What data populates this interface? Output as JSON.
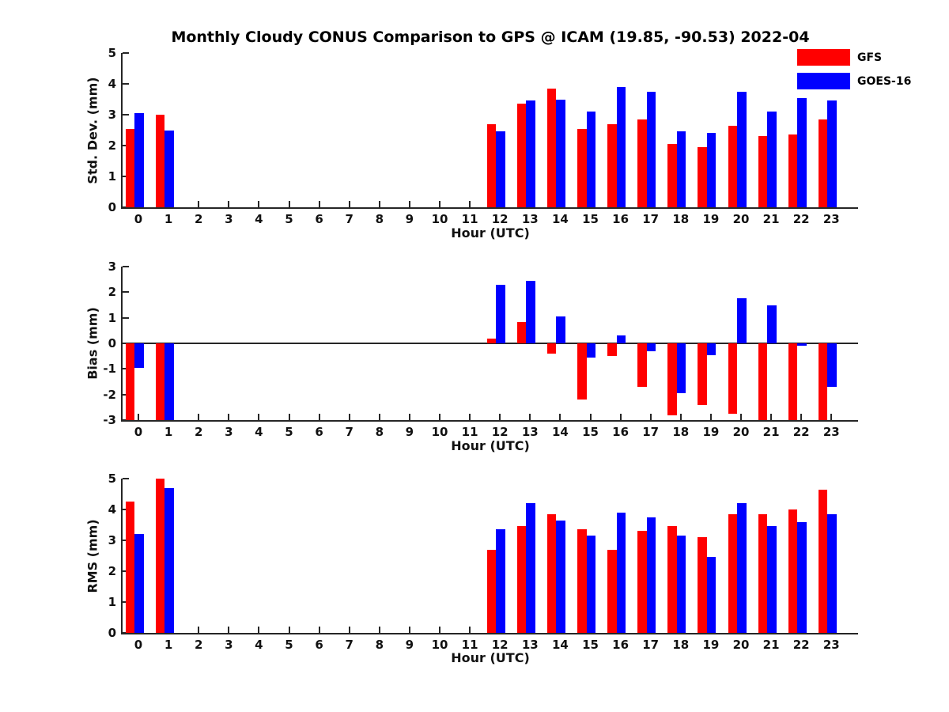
{
  "title": "Monthly Cloudy CONUS Comparison to GPS @ ICAM (19.85, -90.53) 2022-04",
  "legend_position": "top-right",
  "chart_data": [
    {
      "type": "bar",
      "panel": "std-dev",
      "ylabel": "Std. Dev. (mm)",
      "xlabel": "Hour (UTC)",
      "ylim": [
        0,
        5
      ],
      "ytick_step": 1,
      "grid": false,
      "zero_line": false,
      "categories": [
        "0",
        "1",
        "2",
        "3",
        "4",
        "5",
        "6",
        "7",
        "8",
        "9",
        "10",
        "11",
        "12",
        "13",
        "14",
        "15",
        "16",
        "17",
        "18",
        "19",
        "20",
        "21",
        "22",
        "23"
      ],
      "series": [
        {
          "name": "GFS",
          "color": "#ff0000",
          "values": [
            2.55,
            3.0,
            null,
            null,
            null,
            null,
            null,
            null,
            null,
            null,
            null,
            null,
            2.7,
            3.35,
            3.85,
            2.55,
            2.7,
            2.85,
            2.05,
            1.95,
            2.65,
            2.3,
            2.35,
            2.85
          ]
        },
        {
          "name": "GOES-16",
          "color": "#0000ff",
          "values": [
            3.05,
            2.5,
            null,
            null,
            null,
            null,
            null,
            null,
            null,
            null,
            null,
            null,
            2.45,
            3.45,
            3.5,
            3.1,
            3.9,
            3.75,
            2.45,
            2.4,
            3.75,
            3.1,
            3.55,
            3.45
          ]
        }
      ]
    },
    {
      "type": "bar",
      "panel": "bias",
      "ylabel": "Bias (mm)",
      "xlabel": "Hour (UTC)",
      "ylim": [
        -3,
        3
      ],
      "ytick_step": 1,
      "grid": false,
      "zero_line": true,
      "categories": [
        "0",
        "1",
        "2",
        "3",
        "4",
        "5",
        "6",
        "7",
        "8",
        "9",
        "10",
        "11",
        "12",
        "13",
        "14",
        "15",
        "16",
        "17",
        "18",
        "19",
        "20",
        "21",
        "22",
        "23"
      ],
      "series": [
        {
          "name": "GFS",
          "color": "#ff0000",
          "values": [
            -3,
            -3,
            null,
            null,
            null,
            null,
            null,
            null,
            null,
            null,
            null,
            null,
            0.2,
            0.85,
            -0.4,
            -2.2,
            -0.5,
            -1.7,
            -2.8,
            -2.4,
            -2.75,
            -3,
            -3,
            -3
          ]
        },
        {
          "name": "GOES-16",
          "color": "#0000ff",
          "values": [
            -0.95,
            -3,
            null,
            null,
            null,
            null,
            null,
            null,
            null,
            null,
            null,
            null,
            2.3,
            2.45,
            1.05,
            -0.55,
            0.3,
            -0.3,
            -1.95,
            -0.45,
            1.75,
            1.5,
            -0.1,
            -1.7
          ]
        }
      ]
    },
    {
      "type": "bar",
      "panel": "rms",
      "ylabel": "RMS (mm)",
      "xlabel": "Hour (UTC)",
      "ylim": [
        0,
        5
      ],
      "ytick_step": 1,
      "grid": false,
      "zero_line": false,
      "categories": [
        "0",
        "1",
        "2",
        "3",
        "4",
        "5",
        "6",
        "7",
        "8",
        "9",
        "10",
        "11",
        "12",
        "13",
        "14",
        "15",
        "16",
        "17",
        "18",
        "19",
        "20",
        "21",
        "22",
        "23"
      ],
      "series": [
        {
          "name": "GFS",
          "color": "#ff0000",
          "values": [
            4.25,
            5.0,
            null,
            null,
            null,
            null,
            null,
            null,
            null,
            null,
            null,
            null,
            2.7,
            3.45,
            3.85,
            3.35,
            2.7,
            3.3,
            3.45,
            3.1,
            3.85,
            3.85,
            4.0,
            4.65
          ]
        },
        {
          "name": "GOES-16",
          "color": "#0000ff",
          "values": [
            3.2,
            4.7,
            null,
            null,
            null,
            null,
            null,
            null,
            null,
            null,
            null,
            null,
            3.35,
            4.2,
            3.65,
            3.15,
            3.9,
            3.75,
            3.15,
            2.45,
            4.2,
            3.45,
            3.6,
            3.85
          ]
        }
      ]
    }
  ]
}
